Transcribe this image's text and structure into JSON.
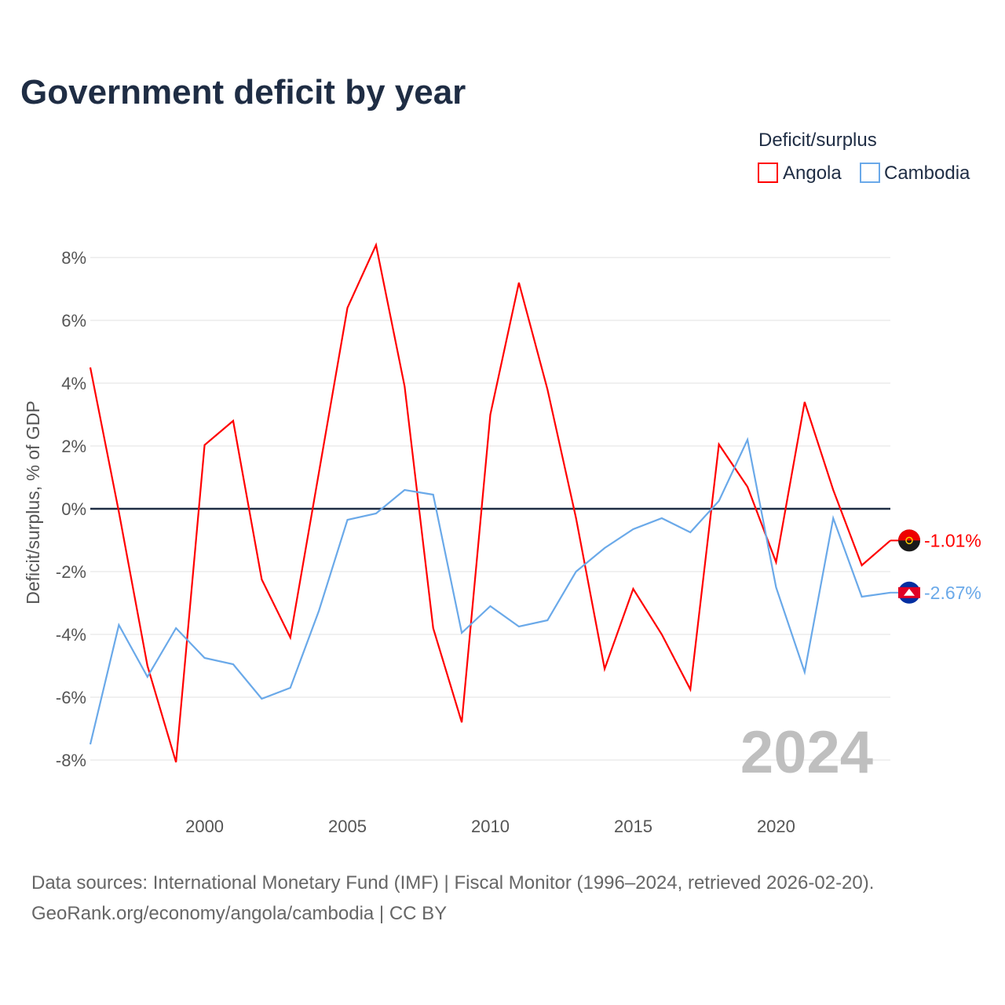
{
  "chart_data": {
    "type": "line",
    "title": "Government deficit by year",
    "ylabel": "Deficit/surplus, % of GDP",
    "xlabel": "",
    "legend_title": "Deficit/surplus",
    "legend_placement": "top-right",
    "xlim": [
      1996,
      2024
    ],
    "ylim": [
      -8.8,
      8.8
    ],
    "x_ticks": [
      2000,
      2005,
      2010,
      2015,
      2020
    ],
    "x_tick_labels": [
      "2000",
      "2005",
      "2010",
      "2015",
      "2020"
    ],
    "y_ticks": [
      -8,
      -6,
      -4,
      -2,
      0,
      2,
      4,
      6,
      8
    ],
    "y_tick_labels": [
      "-8%",
      "-6%",
      "-4%",
      "-2%",
      "0%",
      "2%",
      "4%",
      "6%",
      "8%"
    ],
    "grid": true,
    "x": [
      1996,
      1997,
      1998,
      1999,
      2000,
      2001,
      2002,
      2003,
      2004,
      2005,
      2006,
      2007,
      2008,
      2009,
      2010,
      2011,
      2012,
      2013,
      2014,
      2015,
      2016,
      2017,
      2018,
      2019,
      2020,
      2021,
      2022,
      2023,
      2024
    ],
    "series": [
      {
        "name": "Angola",
        "color": "#ff0000",
        "end_label": "-1.01%",
        "values": [
          4.5,
          -0.1,
          -5.0,
          -8.07,
          2.03,
          2.8,
          -2.25,
          -4.1,
          1.15,
          6.4,
          8.4,
          3.9,
          -3.8,
          -6.8,
          3.0,
          7.2,
          3.8,
          -0.3,
          -5.1,
          -2.55,
          -4.0,
          -5.75,
          2.05,
          0.7,
          -1.7,
          3.4,
          0.6,
          -1.8,
          -1.01
        ]
      },
      {
        "name": "Cambodia",
        "color": "#6aa9e9",
        "end_label": "-2.67%",
        "values": [
          -7.5,
          -3.7,
          -5.35,
          -3.8,
          -4.75,
          -4.95,
          -6.05,
          -5.7,
          -3.25,
          -0.35,
          -0.15,
          0.6,
          0.45,
          -3.95,
          -3.1,
          -3.75,
          -3.55,
          -2.0,
          -1.25,
          -0.65,
          -0.3,
          -0.75,
          0.25,
          2.2,
          -2.5,
          -5.2,
          -0.3,
          -2.8,
          -2.67
        ]
      }
    ],
    "year_watermark": "2024"
  },
  "footer": {
    "line1": "Data sources: International Monetary Fund (IMF) | Fiscal Monitor (1996–2024, retrieved 2026-02-20).",
    "line2": "GeoRank.org/economy/angola/cambodia | CC BY"
  }
}
